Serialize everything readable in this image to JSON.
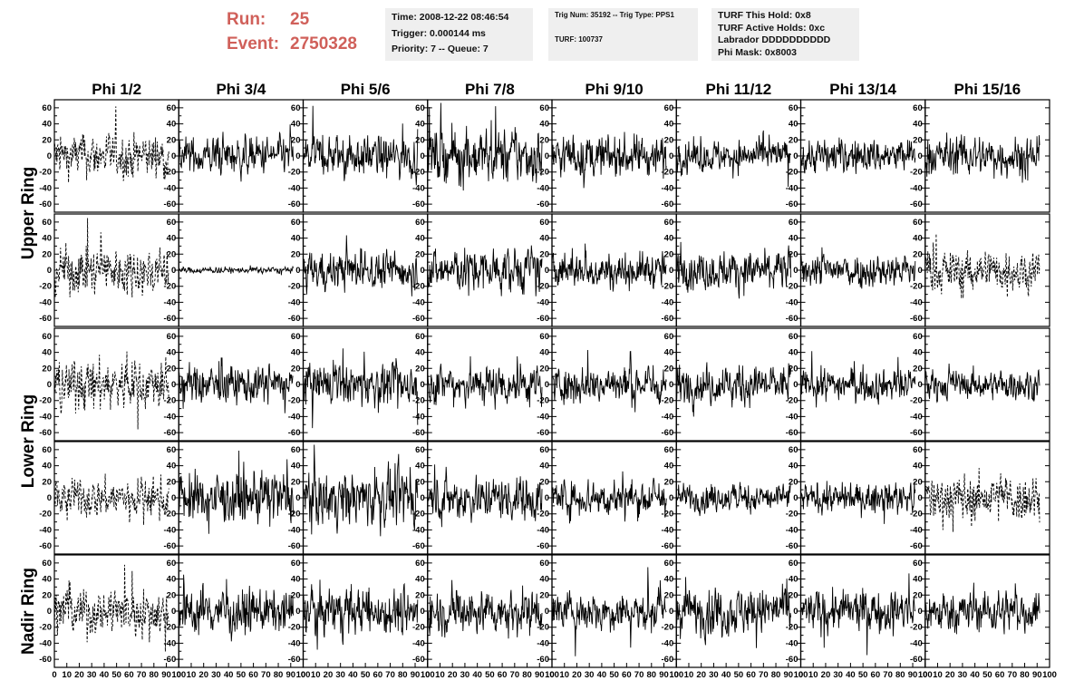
{
  "header": {
    "run_label": "Run:",
    "run_value": "25",
    "event_label": "Event:",
    "event_value": "2750328",
    "highlight_color": "#d0605a",
    "time_box": [
      "Time: 2008-12-22 08:46:54",
      "Trigger: 0.000144 ms",
      "Priority: 7 -- Queue: 7"
    ],
    "trig_box": [
      "Trig Num: 35192 -- Trig Type: PPS1",
      "TURF: 100737"
    ],
    "turf_box": [
      "TURF This Hold: 0x8",
      "TURF Active Holds: 0xc",
      "Labrador DDDDDDDDDD",
      "Phi Mask: 0x8003"
    ]
  },
  "chart_data": {
    "type": "line",
    "columns": [
      "Phi 1/2",
      "Phi 3/4",
      "Phi 5/6",
      "Phi 7/8",
      "Phi 9/10",
      "Phi 11/12",
      "Phi 13/14",
      "Phi 15/16"
    ],
    "rows": [
      {
        "label": "Upper Ring",
        "span": 2
      },
      {
        "label": "Lower Ring",
        "span": 2
      },
      {
        "label": "Nadir Ring",
        "span": 1
      }
    ],
    "xlim": [
      0,
      100
    ],
    "ylim": [
      -70,
      70
    ],
    "yticks": [
      -60,
      -40,
      -20,
      0,
      20,
      40,
      60
    ],
    "xticks": [
      0,
      10,
      20,
      30,
      40,
      50,
      60,
      70,
      80,
      90,
      100
    ],
    "samples_per_trace": 260,
    "line_color": "#000000",
    "panels": [
      [
        {
          "amp": 14,
          "dashed": true
        },
        {
          "amp": 12,
          "dashed": false
        },
        {
          "amp": 13,
          "dashed": false
        },
        {
          "amp": 17,
          "dashed": false
        },
        {
          "amp": 13,
          "dashed": false
        },
        {
          "amp": 10,
          "dashed": false
        },
        {
          "amp": 11,
          "dashed": false
        },
        {
          "amp": 13,
          "dashed": false
        }
      ],
      [
        {
          "amp": 15,
          "dashed": true
        },
        {
          "amp": 2,
          "dashed": false
        },
        {
          "amp": 12,
          "dashed": false
        },
        {
          "amp": 14,
          "dashed": false
        },
        {
          "amp": 11,
          "dashed": false
        },
        {
          "amp": 12,
          "dashed": false
        },
        {
          "amp": 11,
          "dashed": false
        },
        {
          "amp": 13,
          "dashed": true
        }
      ],
      [
        {
          "amp": 16,
          "dashed": true
        },
        {
          "amp": 12,
          "dashed": false
        },
        {
          "amp": 13,
          "dashed": false
        },
        {
          "amp": 13,
          "dashed": false
        },
        {
          "amp": 12,
          "dashed": false
        },
        {
          "amp": 12,
          "dashed": false
        },
        {
          "amp": 10,
          "dashed": false
        },
        {
          "amp": 9,
          "dashed": false
        }
      ],
      [
        {
          "amp": 12,
          "dashed": true
        },
        {
          "amp": 16,
          "dashed": false
        },
        {
          "amp": 17,
          "dashed": false
        },
        {
          "amp": 14,
          "dashed": false
        },
        {
          "amp": 12,
          "dashed": false
        },
        {
          "amp": 9,
          "dashed": false
        },
        {
          "amp": 9,
          "dashed": false
        },
        {
          "amp": 15,
          "dashed": true
        }
      ],
      [
        {
          "amp": 15,
          "dashed": true
        },
        {
          "amp": 14,
          "dashed": false
        },
        {
          "amp": 15,
          "dashed": false
        },
        {
          "amp": 14,
          "dashed": false
        },
        {
          "amp": 12,
          "dashed": false
        },
        {
          "amp": 15,
          "dashed": false
        },
        {
          "amp": 13,
          "dashed": false
        },
        {
          "amp": 13,
          "dashed": false
        }
      ]
    ]
  }
}
